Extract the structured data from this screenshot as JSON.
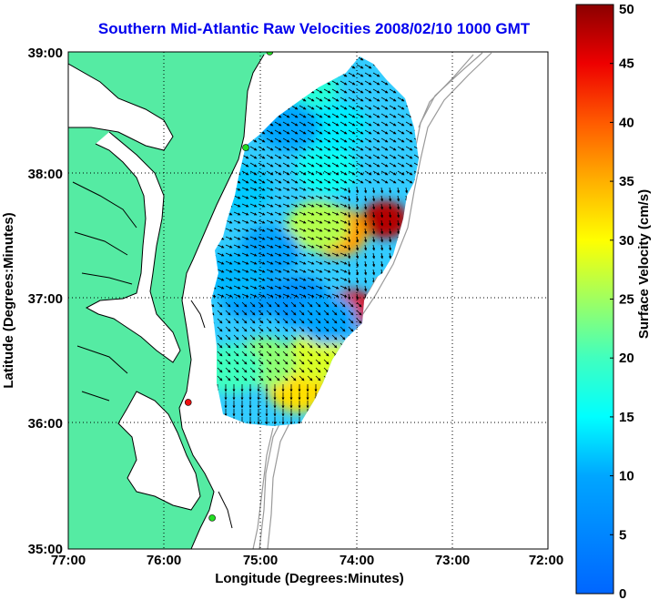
{
  "title": "Southern Mid-Atlantic Raw Velocities 2008/02/10 1000 GMT",
  "x_axis": {
    "label": "Longitude (Degrees:Minutes)",
    "ticks": [
      "77:00",
      "76:00",
      "75:00",
      "74:00",
      "73:00",
      "72:00"
    ]
  },
  "y_axis": {
    "label": "Latitude (Degrees:Minutes)",
    "ticks": [
      "39:00",
      "38:00",
      "37:00",
      "36:00",
      "35:00"
    ]
  },
  "colorbar": {
    "label": "Surface Velocity (cm/s)",
    "ticks": [
      "50",
      "45",
      "40",
      "35",
      "30",
      "25",
      "20",
      "15",
      "10",
      "5",
      "0"
    ],
    "min": 0,
    "max": 50,
    "colormap": "jet"
  },
  "colors": {
    "land": "#55eba3",
    "water": "#ffffff",
    "title": "#0000ee",
    "bathymetry": "#999999",
    "coastline": "#000000",
    "station_green": "#22dd22",
    "station_red": "#ee1111"
  },
  "chart_data": {
    "type": "heatmap",
    "title": "Southern Mid-Atlantic Raw Velocities 2008/02/10 1000 GMT",
    "xlabel": "Longitude (Degrees:Minutes)",
    "ylabel": "Latitude (Degrees:Minutes)",
    "xlim": [
      -77,
      -72
    ],
    "ylim": [
      35,
      39
    ],
    "grid": true,
    "colorbar_label": "Surface Velocity (cm/s)",
    "clim": [
      0,
      50
    ],
    "stations": [
      {
        "lon": -74.9,
        "lat": 39.0,
        "color": "green"
      },
      {
        "lon": -75.15,
        "lat": 38.23,
        "color": "green"
      },
      {
        "lon": -75.75,
        "lat": 36.18,
        "color": "red"
      },
      {
        "lon": -75.5,
        "lat": 35.25,
        "color": "green"
      }
    ],
    "velocity_regions": [
      {
        "lon": -73.7,
        "lat": 37.65,
        "speed": 48
      },
      {
        "lon": -74.05,
        "lat": 36.93,
        "speed": 46
      },
      {
        "lon": -74.2,
        "lat": 37.55,
        "speed": 36
      },
      {
        "lon": -74.4,
        "lat": 37.6,
        "speed": 26
      },
      {
        "lon": -74.6,
        "lat": 36.3,
        "speed": 32
      },
      {
        "lon": -74.4,
        "lat": 36.55,
        "speed": 28
      },
      {
        "lon": -74.95,
        "lat": 36.5,
        "speed": 24
      },
      {
        "lon": -75.3,
        "lat": 36.45,
        "speed": 20
      },
      {
        "lon": -74.5,
        "lat": 38.7,
        "speed": 18
      },
      {
        "lon": -74.3,
        "lat": 38.05,
        "speed": 16
      },
      {
        "lon": -74.2,
        "lat": 38.4,
        "speed": 14
      },
      {
        "lon": -75.2,
        "lat": 37.9,
        "speed": 12
      },
      {
        "lon": -74.9,
        "lat": 37.4,
        "speed": 9
      },
      {
        "lon": -74.6,
        "lat": 37.0,
        "speed": 7
      },
      {
        "lon": -75.1,
        "lat": 37.05,
        "speed": 8
      },
      {
        "lon": -74.7,
        "lat": 38.4,
        "speed": 10
      },
      {
        "lon": -75.25,
        "lat": 37.2,
        "speed": 11
      },
      {
        "lon": -74.3,
        "lat": 36.85,
        "speed": 10
      }
    ]
  }
}
